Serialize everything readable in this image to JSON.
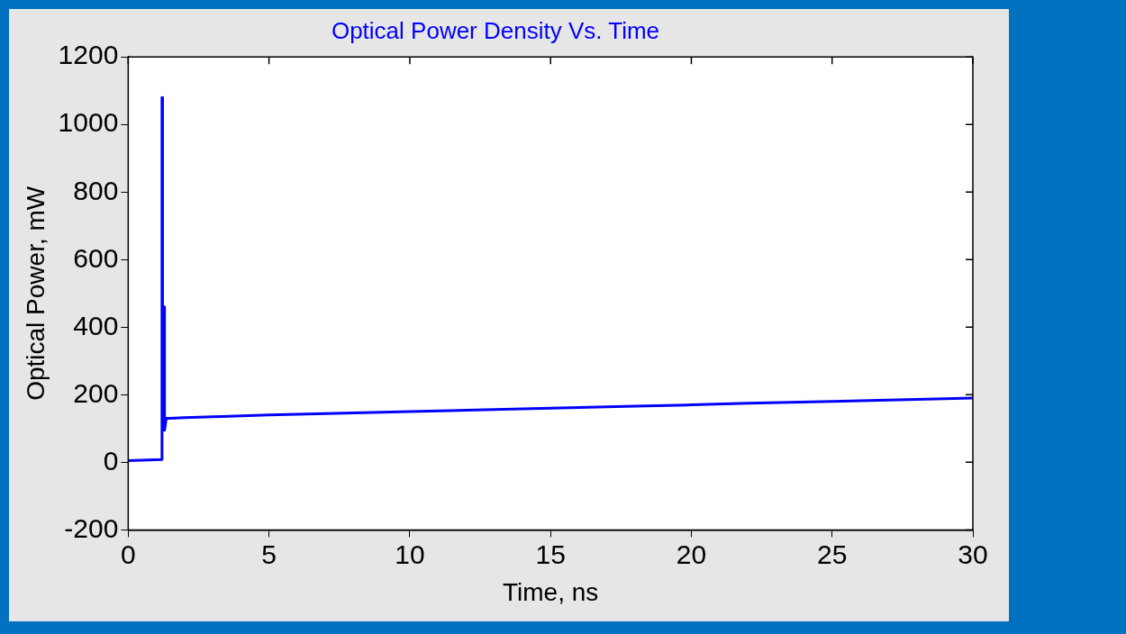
{
  "chart_data": {
    "type": "line",
    "title": "Optical Power Density Vs. Time",
    "xlabel": "Time, ns",
    "ylabel": "Optical Power, mW",
    "x": [
      0,
      1.2,
      1.2,
      1.22,
      1.22,
      1.27,
      1.27,
      1.3,
      1.3,
      1.35,
      1.5,
      2,
      3,
      5,
      8,
      10,
      12,
      15,
      18,
      20,
      22,
      25,
      28,
      30
    ],
    "series": [
      {
        "color": "#0000ff",
        "values": [
          5,
          8,
          1080,
          1080,
          100,
          100,
          460,
          460,
          95,
          130,
          130,
          132,
          135,
          140,
          146,
          150,
          154,
          160,
          166,
          170,
          175,
          180,
          186,
          190
        ]
      }
    ],
    "xlim": [
      0,
      30
    ],
    "xticks": [
      0,
      5,
      10,
      15,
      20,
      25,
      30
    ],
    "ylim": [
      -200,
      1200
    ],
    "yticks": [
      -200,
      0,
      200,
      400,
      600,
      800,
      1000,
      1200
    ],
    "grid": false,
    "legend": false,
    "marker": "none",
    "line_style": "solid"
  }
}
